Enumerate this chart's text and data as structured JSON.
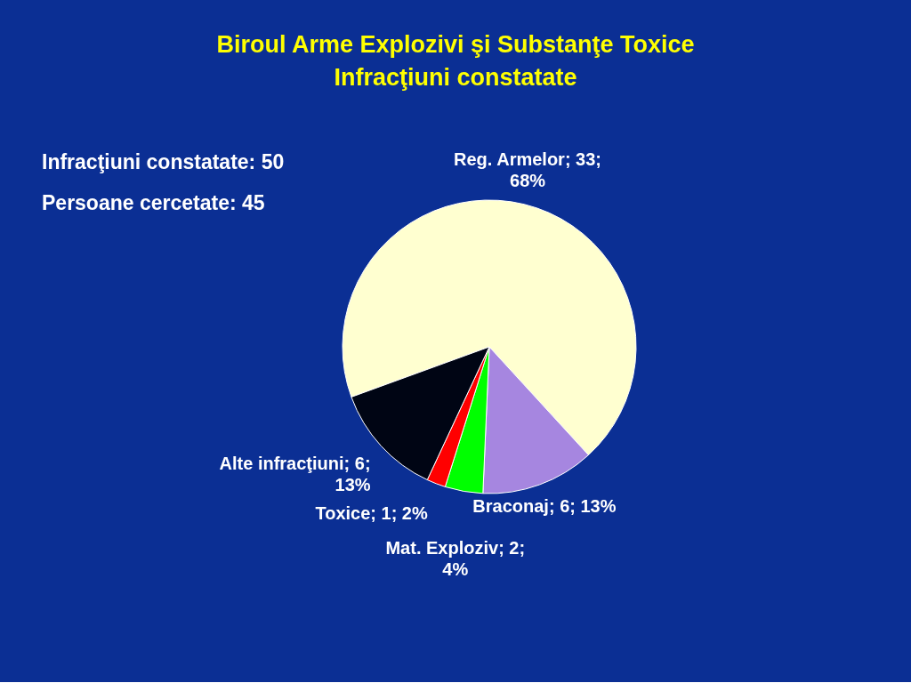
{
  "chart_data": {
    "type": "pie",
    "title": "Biroul Arme Explozivi şi Substanţe Toxice",
    "subtitle": "Infracţiuni constatate",
    "categories": [
      "Reg. Armelor",
      "Braconaj",
      "Mat. Exploziv",
      "Toxice",
      "Alte infracţiuni"
    ],
    "values": [
      33,
      6,
      2,
      1,
      6
    ],
    "colors": [
      "#ffffd0",
      "#a686e0",
      "#00ff00",
      "#ff0000",
      "#000514"
    ],
    "value_labels": [
      "33; 68%",
      "6; 13%",
      "2; 4%",
      "1; 2%",
      "6; 13%"
    ],
    "annotations": [
      "Infracţiuni constatate: 50",
      "Persoane cercetate: 45"
    ]
  }
}
